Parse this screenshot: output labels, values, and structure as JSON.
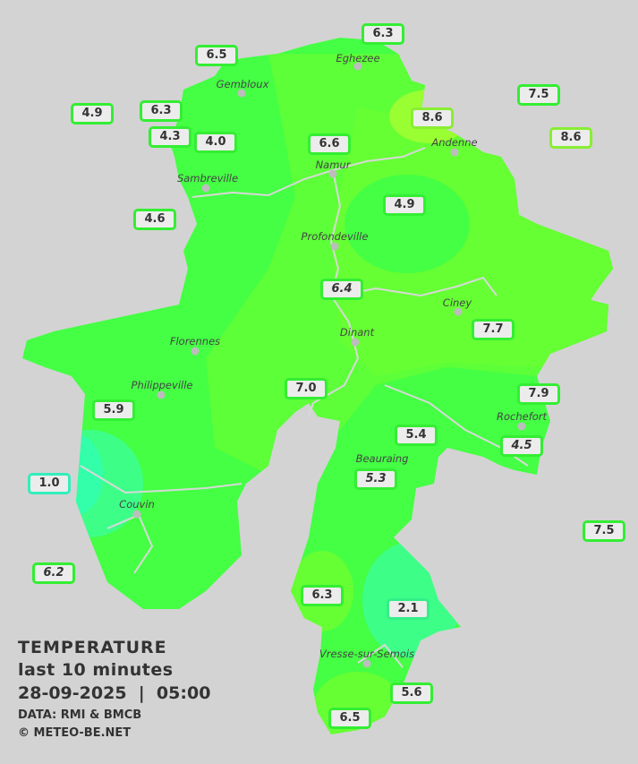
{
  "legend": {
    "title": "TEMPERATURE",
    "subtitle": "last 10 minutes",
    "datetime": "28-09-2025  |  05:00",
    "source": "DATA: RMI & BMCB",
    "copyright": "© METEO-BE.NET"
  },
  "colors": {
    "background": "#d3d3d3",
    "region_base": "#44ff44",
    "region_warm": "#66ff33",
    "region_warmest": "#99ff33",
    "region_cool": "#33ffaa",
    "station_border": "#33ee33"
  },
  "towns": [
    "Eghezee",
    "Gembloux",
    "Andenne",
    "Namur",
    "Sambreville",
    "Profondeville",
    "Ciney",
    "Dinant",
    "Florennes",
    "Philippeville",
    "Rochefort",
    "Beauraing",
    "Couvin",
    "Vresse-sur-Semois"
  ],
  "stations": [
    "6.3",
    "6.5",
    "7.5",
    "4.9",
    "6.3",
    "8.6",
    "8.6",
    "4.3",
    "4.0",
    "6.6",
    "4.9",
    "4.6",
    "6.4",
    "7.7",
    "7.0",
    "7.9",
    "5.9",
    "4.5",
    "5.4",
    "5.3",
    "1.0",
    "7.5",
    "6.2",
    "6.3",
    "2.1",
    "5.6",
    "6.5"
  ]
}
